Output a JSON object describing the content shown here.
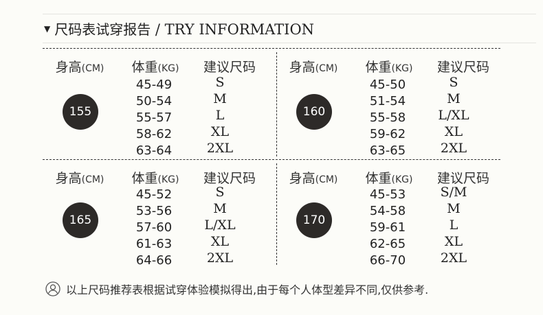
{
  "header": {
    "marker": "▼",
    "title_cn": "尺码表试穿报告",
    "title_en": " / TRY INFORMATION"
  },
  "columns": {
    "height": "身高",
    "height_unit": "(CM)",
    "weight": "体重",
    "weight_unit": "(KG)",
    "size": "建议尺码"
  },
  "blocks": [
    {
      "height": "155",
      "rows": [
        [
          "45-49",
          "S"
        ],
        [
          "50-54",
          "M"
        ],
        [
          "55-57",
          "L"
        ],
        [
          "58-62",
          "XL"
        ],
        [
          "63-64",
          "2XL"
        ]
      ]
    },
    {
      "height": "160",
      "rows": [
        [
          "45-50",
          "S"
        ],
        [
          "51-54",
          "M"
        ],
        [
          "55-58",
          "L/XL"
        ],
        [
          "59-62",
          "XL"
        ],
        [
          "63-65",
          "2XL"
        ]
      ]
    },
    {
      "height": "165",
      "rows": [
        [
          "45-52",
          "S"
        ],
        [
          "53-56",
          "M"
        ],
        [
          "57-60",
          "L/XL"
        ],
        [
          "61-63",
          "XL"
        ],
        [
          "64-66",
          "2XL"
        ]
      ]
    },
    {
      "height": "170",
      "rows": [
        [
          "45-53",
          "S/M"
        ],
        [
          "54-58",
          "M"
        ],
        [
          "59-61",
          "L"
        ],
        [
          "62-65",
          "XL"
        ],
        [
          "66-70",
          "2XL"
        ]
      ]
    }
  ],
  "note": {
    "icon": "user-circle-icon",
    "text": "以上尺码推荐表根据试穿体验模拟得出,由于每个人体型差异不同,仅供参考."
  },
  "colors": {
    "circle": "#2d2a28",
    "background": "#fcfcf8"
  }
}
